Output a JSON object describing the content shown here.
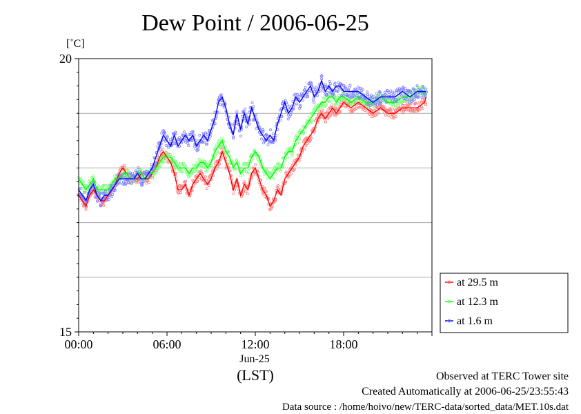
{
  "chart_data": {
    "type": "line",
    "title": "Dew Point / 2006-06-25",
    "ylabel": "[˚C]",
    "xlabel": "(LST)",
    "date_label": "Jun-25",
    "ylim": [
      15,
      20
    ],
    "xlim": [
      0,
      24
    ],
    "y_ticks": [
      {
        "value": 15,
        "label": "15"
      },
      {
        "value": 20,
        "label": "20"
      }
    ],
    "y_gridlines": [
      16,
      17,
      18,
      19
    ],
    "x_ticks": [
      {
        "value": 0,
        "label": "00:00"
      },
      {
        "value": 6,
        "label": "06:00"
      },
      {
        "value": 12,
        "label": "12:00"
      },
      {
        "value": 18,
        "label": "18:00"
      }
    ],
    "legend_position": "bottom-right outside",
    "series": [
      {
        "name": "at 29.5 m",
        "color": "#ff0000",
        "scatter_color": "#ff8080",
        "x": [
          0,
          0.25,
          0.5,
          0.75,
          1,
          1.25,
          1.5,
          1.75,
          2,
          2.25,
          2.5,
          2.75,
          3,
          3.25,
          3.5,
          3.75,
          4,
          4.25,
          4.5,
          4.75,
          5,
          5.25,
          5.5,
          5.75,
          6,
          6.25,
          6.5,
          6.75,
          7,
          7.25,
          7.5,
          7.75,
          8,
          8.25,
          8.5,
          8.75,
          9,
          9.25,
          9.5,
          9.75,
          10,
          10.25,
          10.5,
          10.75,
          11,
          11.25,
          11.5,
          11.75,
          12,
          12.25,
          12.5,
          12.75,
          13,
          13.25,
          13.5,
          13.75,
          14,
          14.25,
          14.5,
          14.75,
          15,
          15.25,
          15.5,
          15.75,
          16,
          16.25,
          16.5,
          16.75,
          17,
          17.25,
          17.5,
          17.75,
          18,
          18.5,
          19,
          19.5,
          20,
          20.5,
          21,
          21.5,
          22,
          22.5,
          23,
          23.5,
          24
        ],
        "y": [
          17.5,
          17.4,
          17.3,
          17.5,
          17.6,
          17.5,
          17.4,
          17.4,
          17.5,
          17.6,
          17.7,
          17.9,
          18.0,
          17.9,
          17.8,
          17.8,
          17.8,
          17.9,
          17.8,
          17.8,
          17.9,
          18.0,
          18.2,
          18.3,
          18.2,
          18.1,
          17.9,
          17.6,
          17.6,
          17.7,
          17.5,
          17.7,
          17.8,
          17.9,
          17.8,
          17.7,
          17.8,
          18.0,
          18.1,
          18.3,
          18.1,
          17.9,
          17.6,
          17.8,
          17.5,
          17.7,
          17.6,
          17.9,
          18.0,
          17.8,
          17.6,
          17.5,
          17.3,
          17.4,
          17.6,
          17.5,
          17.8,
          17.9,
          18.0,
          18.1,
          18.2,
          18.4,
          18.5,
          18.6,
          18.7,
          18.9,
          19.0,
          18.9,
          19.0,
          19.1,
          19.0,
          19.1,
          19.2,
          19.1,
          19.2,
          19.1,
          19.0,
          19.1,
          19.0,
          19.0,
          19.1,
          19.1,
          19.1,
          19.2,
          19.3
        ]
      },
      {
        "name": "at 12.3 m",
        "color": "#00ff00",
        "scatter_color": "#80ff80",
        "x": [
          0,
          0.25,
          0.5,
          0.75,
          1,
          1.25,
          1.5,
          1.75,
          2,
          2.25,
          2.5,
          2.75,
          3,
          3.25,
          3.5,
          3.75,
          4,
          4.25,
          4.5,
          4.75,
          5,
          5.25,
          5.5,
          5.75,
          6,
          6.25,
          6.5,
          6.75,
          7,
          7.25,
          7.5,
          7.75,
          8,
          8.25,
          8.5,
          8.75,
          9,
          9.25,
          9.5,
          9.75,
          10,
          10.25,
          10.5,
          10.75,
          11,
          11.25,
          11.5,
          11.75,
          12,
          12.25,
          12.5,
          12.75,
          13,
          13.25,
          13.5,
          13.75,
          14,
          14.25,
          14.5,
          14.75,
          15,
          15.25,
          15.5,
          15.75,
          16,
          16.25,
          16.5,
          16.75,
          17,
          17.25,
          17.5,
          17.75,
          18,
          18.5,
          19,
          19.5,
          20,
          20.5,
          21,
          21.5,
          22,
          22.5,
          23,
          23.5,
          24
        ],
        "y": [
          17.8,
          17.7,
          17.6,
          17.7,
          17.8,
          17.6,
          17.6,
          17.6,
          17.6,
          17.7,
          17.8,
          17.8,
          17.9,
          17.9,
          17.8,
          17.8,
          17.9,
          17.9,
          17.8,
          17.9,
          17.9,
          18.0,
          18.1,
          18.2,
          18.2,
          18.2,
          18.1,
          18.0,
          18.0,
          18.0,
          17.9,
          18.0,
          18.0,
          18.1,
          18.1,
          18.0,
          18.1,
          18.3,
          18.4,
          18.5,
          18.3,
          18.2,
          18.0,
          18.1,
          17.9,
          18.0,
          18.0,
          18.2,
          18.3,
          18.2,
          18.0,
          17.9,
          17.8,
          17.9,
          18.0,
          18.0,
          18.2,
          18.3,
          18.3,
          18.5,
          18.6,
          18.7,
          18.8,
          18.9,
          19.0,
          19.1,
          19.2,
          19.2,
          19.3,
          19.3,
          19.2,
          19.3,
          19.3,
          19.2,
          19.3,
          19.2,
          19.2,
          19.3,
          19.2,
          19.2,
          19.3,
          19.3,
          19.4,
          19.4,
          19.4
        ]
      },
      {
        "name": "at 1.6 m",
        "color": "#0000ff",
        "scatter_color": "#8080ff",
        "x": [
          0,
          0.25,
          0.5,
          0.75,
          1,
          1.25,
          1.5,
          1.75,
          2,
          2.25,
          2.5,
          2.75,
          3,
          3.25,
          3.5,
          3.75,
          4,
          4.25,
          4.5,
          4.75,
          5,
          5.25,
          5.5,
          5.75,
          6,
          6.25,
          6.5,
          6.75,
          7,
          7.25,
          7.5,
          7.75,
          8,
          8.25,
          8.5,
          8.75,
          9,
          9.25,
          9.5,
          9.75,
          10,
          10.25,
          10.5,
          10.75,
          11,
          11.25,
          11.5,
          11.75,
          12,
          12.25,
          12.5,
          12.75,
          13,
          13.25,
          13.5,
          13.75,
          14,
          14.25,
          14.5,
          14.75,
          15,
          15.25,
          15.5,
          15.75,
          16,
          16.25,
          16.5,
          16.75,
          17,
          17.25,
          17.5,
          17.75,
          18,
          18.5,
          19,
          19.5,
          20,
          20.5,
          21,
          21.5,
          22,
          22.5,
          23,
          23.5,
          24
        ],
        "y": [
          17.6,
          17.5,
          17.4,
          17.6,
          17.7,
          17.5,
          17.4,
          17.5,
          17.5,
          17.6,
          17.7,
          17.8,
          17.8,
          17.8,
          17.8,
          17.8,
          17.9,
          17.8,
          17.8,
          17.9,
          18.0,
          18.2,
          18.4,
          18.6,
          18.5,
          18.4,
          18.6,
          18.4,
          18.5,
          18.6,
          18.5,
          18.6,
          18.4,
          18.5,
          18.6,
          18.5,
          18.7,
          18.9,
          19.2,
          19.3,
          19.1,
          18.8,
          18.6,
          19.0,
          18.7,
          19.0,
          18.8,
          19.1,
          18.9,
          18.7,
          18.6,
          18.5,
          18.6,
          18.5,
          18.8,
          19.0,
          19.2,
          19.0,
          19.1,
          19.3,
          19.2,
          19.3,
          19.4,
          19.5,
          19.3,
          19.4,
          19.6,
          19.4,
          19.5,
          19.4,
          19.5,
          19.5,
          19.4,
          19.4,
          19.4,
          19.3,
          19.2,
          19.3,
          19.3,
          19.3,
          19.4,
          19.3,
          19.4,
          19.4,
          19.4
        ]
      }
    ]
  },
  "footer": {
    "line1": "Observed at TERC Tower site",
    "line2": "Created Automatically at 2006-06-25/23:55:43",
    "line3": "Data source : /home/hoivo/new/TERC-data/sorted_data/MET.10s.dat"
  }
}
